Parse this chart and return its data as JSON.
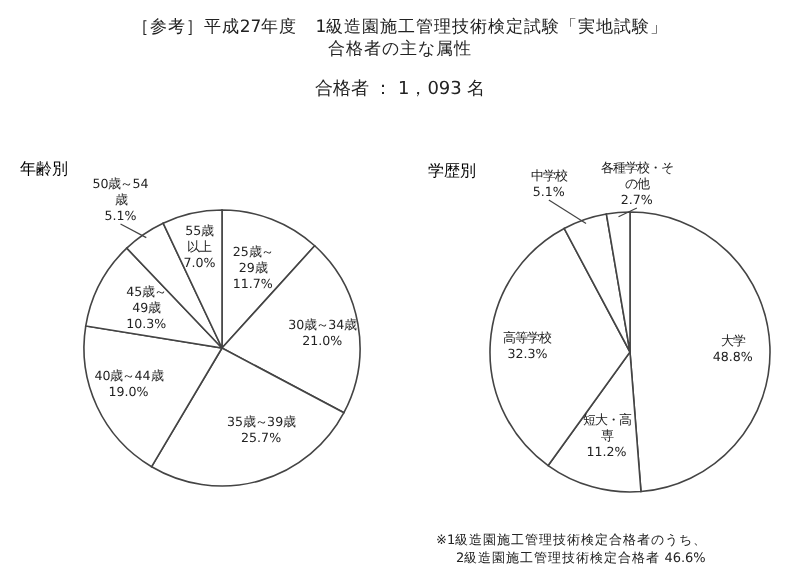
{
  "chart_data": [
    {
      "type": "pie",
      "title": "年齢別",
      "annotations": [
        "［参考］平成27年度　1級造園施工管理技術検定試験「実地試験」",
        "合格者の主な属性",
        "合格者 ： 1，093 名"
      ],
      "categories": [
        "25歳～29歳",
        "30歳～34歳",
        "35歳～39歳",
        "40歳～44歳",
        "45歳～49歳",
        "50歳～54歳",
        "55歳以上"
      ],
      "values": [
        11.7,
        21.0,
        25.7,
        19.0,
        10.3,
        5.1,
        7.0
      ],
      "value_labels": [
        "11.7%",
        "21.0%",
        "25.7%",
        "19.0%",
        "10.3%",
        "5.1%",
        "7.0%"
      ],
      "colors": [
        "#ffffff",
        "#ffffff",
        "#ffffff",
        "#ffffff",
        "#ffffff",
        "#ffffff",
        "#ffffff"
      ]
    },
    {
      "type": "pie",
      "title": "学歴別",
      "annotations": [
        "※1級造園施工管理技術検定合格者のうち、",
        "2級造園施工管理技術検定合格者 46.6%"
      ],
      "categories": [
        "大学",
        "短大・高専",
        "高等学校",
        "中学校",
        "各種学校・その他"
      ],
      "values": [
        48.8,
        11.2,
        32.3,
        5.1,
        2.7
      ],
      "value_labels": [
        "48.8%",
        "11.2%",
        "32.3%",
        "5.1%",
        "2.7%"
      ],
      "colors": [
        "#ffffff",
        "#ffffff",
        "#ffffff",
        "#ffffff",
        "#ffffff"
      ]
    }
  ]
}
